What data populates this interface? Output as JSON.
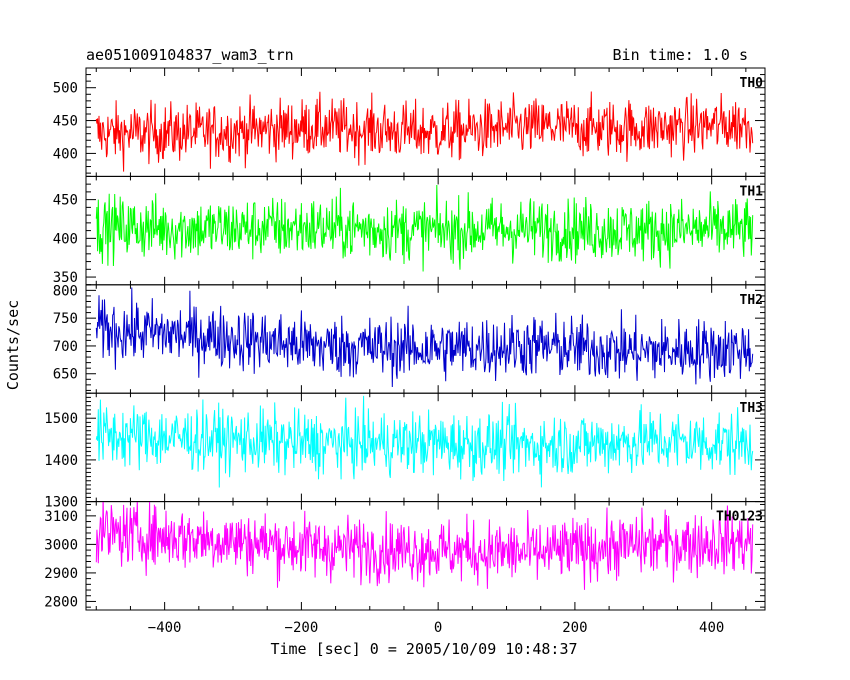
{
  "header": {
    "title": "ae051009104837_wam3_trn",
    "bin_time": "Bin time: 1.0 s"
  },
  "chart_data": {
    "type": "line",
    "title": "ae051009104837_wam3_trn",
    "subtitle": "Bin time: 1.0 s",
    "xlabel": "Time [sec] 0 = 2005/10/09 10:48:37",
    "ylabel": "Counts/sec",
    "xlim": [
      -515,
      478
    ],
    "x_range": [
      -500,
      460
    ],
    "x_step": 1,
    "x_ticks": [
      -400,
      -200,
      0,
      200,
      400
    ],
    "grid": false,
    "legend": "none",
    "panels": [
      {
        "name": "TH0",
        "color": "#ff0000",
        "ylim": [
          365,
          530
        ],
        "y_ticks": [
          400,
          450,
          500
        ],
        "mean": 435,
        "noise": 22,
        "trend": [
          430,
          432,
          440,
          432,
          440,
          438,
          445
        ]
      },
      {
        "name": "TH1",
        "color": "#00ff00",
        "ylim": [
          340,
          480
        ],
        "y_ticks": [
          350,
          400,
          450
        ],
        "mean": 412,
        "noise": 20,
        "trend": [
          415,
          412,
          414,
          410,
          412,
          410,
          412
        ]
      },
      {
        "name": "TH2",
        "color": "#0000cc",
        "ylim": [
          615,
          810
        ],
        "y_ticks": [
          650,
          700,
          750,
          800
        ],
        "mean": 705,
        "noise": 28,
        "trend": [
          730,
          718,
          700,
          695,
          700,
          690,
          695
        ]
      },
      {
        "name": "TH3",
        "color": "#00ffff",
        "ylim": [
          1300,
          1560
        ],
        "y_ticks": [
          1300,
          1400,
          1500
        ],
        "mean": 1445,
        "noise": 38,
        "trend": [
          1460,
          1450,
          1440,
          1440,
          1435,
          1445,
          1440
        ]
      },
      {
        "name": "TH0123",
        "color": "#ff00ff",
        "ylim": [
          2770,
          3150
        ],
        "y_ticks": [
          2800,
          2900,
          3000,
          3100
        ],
        "mean": 3000,
        "noise": 55,
        "trend": [
          3040,
          3020,
          2990,
          2980,
          2970,
          3000,
          3010
        ]
      }
    ]
  }
}
